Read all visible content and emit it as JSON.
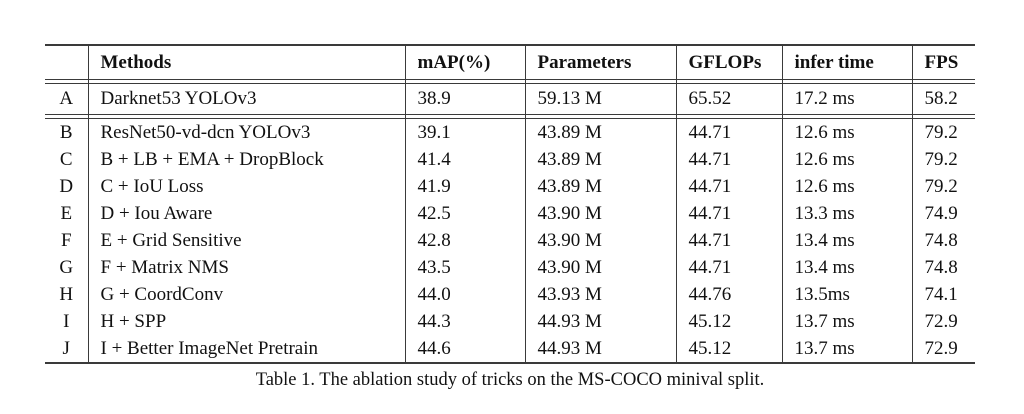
{
  "colors": {
    "background": "#ffffff",
    "text": "#111111",
    "rule": "#3a3a3a"
  },
  "table": {
    "headers": [
      "",
      "Methods",
      "mAP(%)",
      "Parameters",
      "GFLOPs",
      "infer time",
      "FPS"
    ],
    "baseline_rows": [
      {
        "id": "A",
        "method": "Darknet53 YOLOv3",
        "map": "38.9",
        "params": "59.13 M",
        "gflops": "65.52",
        "infer_time": "17.2 ms",
        "fps": "58.2"
      }
    ],
    "trick_rows": [
      {
        "id": "B",
        "method": "ResNet50-vd-dcn YOLOv3",
        "map": "39.1",
        "params": "43.89 M",
        "gflops": "44.71",
        "infer_time": "12.6 ms",
        "fps": "79.2"
      },
      {
        "id": "C",
        "method": "B + LB + EMA + DropBlock",
        "map": "41.4",
        "params": "43.89 M",
        "gflops": "44.71",
        "infer_time": "12.6 ms",
        "fps": "79.2"
      },
      {
        "id": "D",
        "method": "C + IoU Loss",
        "map": "41.9",
        "params": "43.89 M",
        "gflops": "44.71",
        "infer_time": "12.6 ms",
        "fps": "79.2"
      },
      {
        "id": "E",
        "method": "D + Iou Aware",
        "map": "42.5",
        "params": "43.90 M",
        "gflops": "44.71",
        "infer_time": "13.3 ms",
        "fps": "74.9"
      },
      {
        "id": "F",
        "method": "E + Grid Sensitive",
        "map": "42.8",
        "params": "43.90 M",
        "gflops": "44.71",
        "infer_time": "13.4 ms",
        "fps": "74.8"
      },
      {
        "id": "G",
        "method": "F + Matrix NMS",
        "map": "43.5",
        "params": "43.90 M",
        "gflops": "44.71",
        "infer_time": "13.4 ms",
        "fps": "74.8"
      },
      {
        "id": "H",
        "method": "G + CoordConv",
        "map": "44.0",
        "params": "43.93 M",
        "gflops": "44.76",
        "infer_time": "13.5ms",
        "fps": "74.1"
      },
      {
        "id": "I",
        "method": "H + SPP",
        "map": "44.3",
        "params": "44.93 M",
        "gflops": "45.12",
        "infer_time": "13.7 ms",
        "fps": "72.9"
      },
      {
        "id": "J",
        "method": "I + Better ImageNet Pretrain",
        "map": "44.6",
        "params": "44.93 M",
        "gflops": "45.12",
        "infer_time": "13.7 ms",
        "fps": "72.9"
      }
    ]
  },
  "caption": "Table 1. The ablation study of tricks on the MS-COCO minival split."
}
